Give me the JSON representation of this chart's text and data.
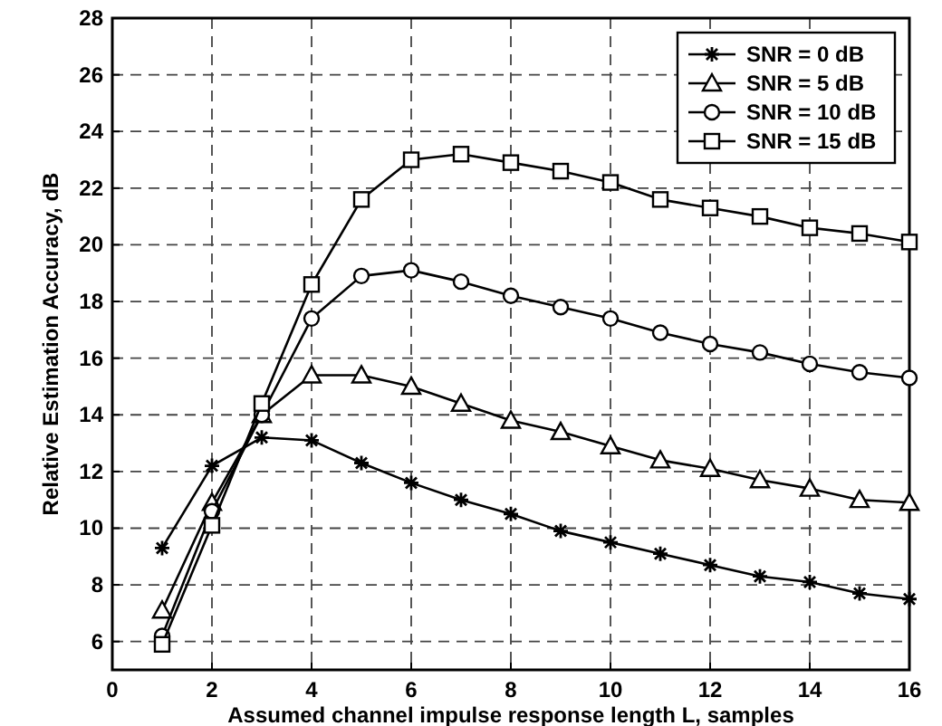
{
  "chart_data": {
    "type": "line",
    "xlabel": "Assumed channel impulse response length L, samples",
    "ylabel": "Relative Estimation Accuracy, dB",
    "x": [
      1,
      2,
      3,
      4,
      5,
      6,
      7,
      8,
      9,
      10,
      11,
      12,
      13,
      14,
      15,
      16
    ],
    "xlim": [
      0,
      16
    ],
    "xticks": [
      0,
      2,
      4,
      6,
      8,
      10,
      12,
      14,
      16
    ],
    "ylim": [
      5,
      28
    ],
    "yticks": [
      6,
      8,
      10,
      12,
      14,
      16,
      18,
      20,
      22,
      24,
      26,
      28
    ],
    "grid": true,
    "legend": "top right",
    "line_style": "solid",
    "series": [
      {
        "name": "SNR = 0 dB",
        "color": "#000000",
        "marker": "cross",
        "values": [
          9.3,
          12.2,
          13.2,
          13.1,
          12.3,
          11.6,
          11.0,
          10.5,
          9.9,
          9.5,
          9.1,
          8.7,
          8.3,
          8.1,
          7.7,
          7.5
        ]
      },
      {
        "name": "SNR = 5 dB",
        "color": "#000000",
        "marker": "triangle",
        "values": [
          7.1,
          10.9,
          14.0,
          15.4,
          15.4,
          15.0,
          14.4,
          13.8,
          13.4,
          12.9,
          12.4,
          12.1,
          11.7,
          11.4,
          11.0,
          10.9
        ]
      },
      {
        "name": "SNR = 10 dB",
        "color": "#000000",
        "marker": "circle",
        "values": [
          6.2,
          10.6,
          14.0,
          17.4,
          18.9,
          19.1,
          18.7,
          18.2,
          17.8,
          17.4,
          16.9,
          16.5,
          16.2,
          15.8,
          15.5,
          15.3
        ]
      },
      {
        "name": "SNR = 15 dB",
        "color": "#000000",
        "marker": "square",
        "values": [
          5.9,
          10.1,
          14.4,
          18.6,
          21.6,
          23.0,
          23.2,
          22.9,
          22.6,
          22.2,
          21.6,
          21.3,
          21.0,
          20.6,
          20.4,
          20.1
        ]
      }
    ]
  }
}
